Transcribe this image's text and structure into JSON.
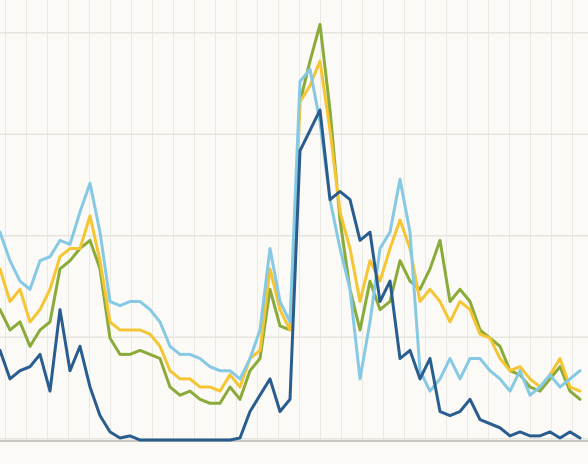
{
  "chart_data": {
    "type": "line",
    "categories": [
      null,
      null,
      null,
      null,
      null,
      null,
      null,
      null,
      null,
      null,
      null,
      null,
      null,
      null,
      null,
      null,
      null,
      null,
      null,
      null,
      null,
      null,
      null,
      null,
      null,
      null,
      null,
      null,
      null,
      null,
      null,
      null,
      null,
      null,
      null,
      null,
      null,
      null,
      null,
      null,
      null,
      null,
      null,
      null,
      null,
      null,
      null,
      null,
      null,
      null,
      null,
      null,
      null,
      null,
      null,
      null,
      null,
      null,
      null
    ],
    "ylim": [
      0,
      108
    ],
    "grid": true,
    "series": [
      {
        "color": "#8aab3a",
        "values": [
          32,
          27,
          29,
          23,
          27,
          29,
          42,
          44,
          47,
          49,
          42,
          25,
          21,
          21,
          22,
          21,
          20,
          13,
          11,
          12,
          10,
          9,
          9,
          13,
          10,
          17,
          20,
          37,
          28,
          27,
          83,
          93,
          102,
          81,
          54,
          37,
          27,
          39,
          32,
          34,
          44,
          39,
          37,
          42,
          49,
          34,
          37,
          34,
          27,
          25,
          23,
          17,
          16,
          13,
          12,
          15,
          18,
          12,
          10
        ]
      },
      {
        "color": "#f5c533",
        "values": [
          42,
          34,
          37,
          29,
          32,
          37,
          45,
          47,
          47,
          55,
          44,
          29,
          27,
          27,
          27,
          26,
          23,
          17,
          15,
          15,
          13,
          13,
          12,
          16,
          13,
          20,
          22,
          42,
          32,
          27,
          83,
          87,
          93,
          76,
          56,
          47,
          34,
          44,
          39,
          47,
          54,
          47,
          34,
          37,
          34,
          29,
          34,
          32,
          26,
          25,
          20,
          17,
          18,
          15,
          13,
          16,
          20,
          13,
          12
        ]
      },
      {
        "color": "#86c9e4",
        "values": [
          51,
          44,
          39,
          37,
          44,
          45,
          49,
          48,
          56,
          63,
          51,
          34,
          33,
          34,
          34,
          32,
          29,
          23,
          21,
          21,
          20,
          18,
          17,
          17,
          15,
          20,
          27,
          47,
          34,
          29,
          88,
          91,
          78,
          59,
          47,
          37,
          15,
          29,
          47,
          51,
          64,
          51,
          17,
          12,
          15,
          20,
          15,
          20,
          20,
          17,
          15,
          12,
          17,
          11,
          13,
          16,
          13,
          15,
          17
        ]
      },
      {
        "color": "#2a5d8f",
        "values": [
          22,
          15,
          17,
          18,
          21,
          12,
          32,
          17,
          23,
          13,
          6,
          2,
          0.5,
          1,
          0,
          0,
          0,
          0,
          0,
          0,
          0,
          0,
          0,
          0,
          0.5,
          7,
          11,
          15,
          7,
          10,
          71,
          76,
          81,
          59,
          61,
          59,
          49,
          51,
          34,
          39,
          20,
          22,
          15,
          20,
          7,
          6,
          7,
          10,
          5,
          4,
          3,
          1,
          2,
          1,
          1,
          2,
          0.5,
          2,
          0.5
        ]
      }
    ]
  }
}
